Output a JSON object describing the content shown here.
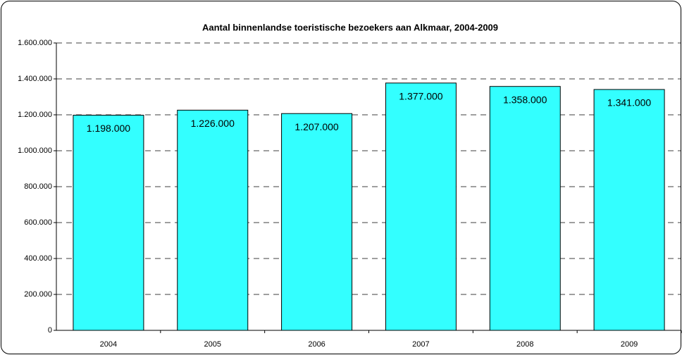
{
  "chart_data": {
    "type": "bar",
    "title": "Aantal binnenlandse toeristische bezoekers aan Alkmaar, 2004-2009",
    "categories": [
      "2004",
      "2005",
      "2006",
      "2007",
      "2008",
      "2009"
    ],
    "values": [
      1198000,
      1226000,
      1207000,
      1377000,
      1358000,
      1341000
    ],
    "value_labels": [
      "1.198.000",
      "1.226.000",
      "1.207.000",
      "1.377.000",
      "1.358.000",
      "1.341.000"
    ],
    "color": "#33ffff",
    "ylim": [
      0,
      1600000
    ],
    "yticks": [
      0,
      {
        "value": 200000,
        "label": "200.000"
      },
      {
        "value": 400000,
        "label": "400.000"
      },
      {
        "value": 600000,
        "label": "600.000"
      },
      {
        "value": 800000,
        "label": "800.000"
      },
      {
        "value": 1000000,
        "label": "1.000.000"
      },
      {
        "value": 1200000,
        "label": "1.200.000"
      },
      {
        "value": 1400000,
        "label": "1.400.000"
      },
      {
        "value": 1600000,
        "label": "1.600.000"
      }
    ],
    "grid": true
  }
}
